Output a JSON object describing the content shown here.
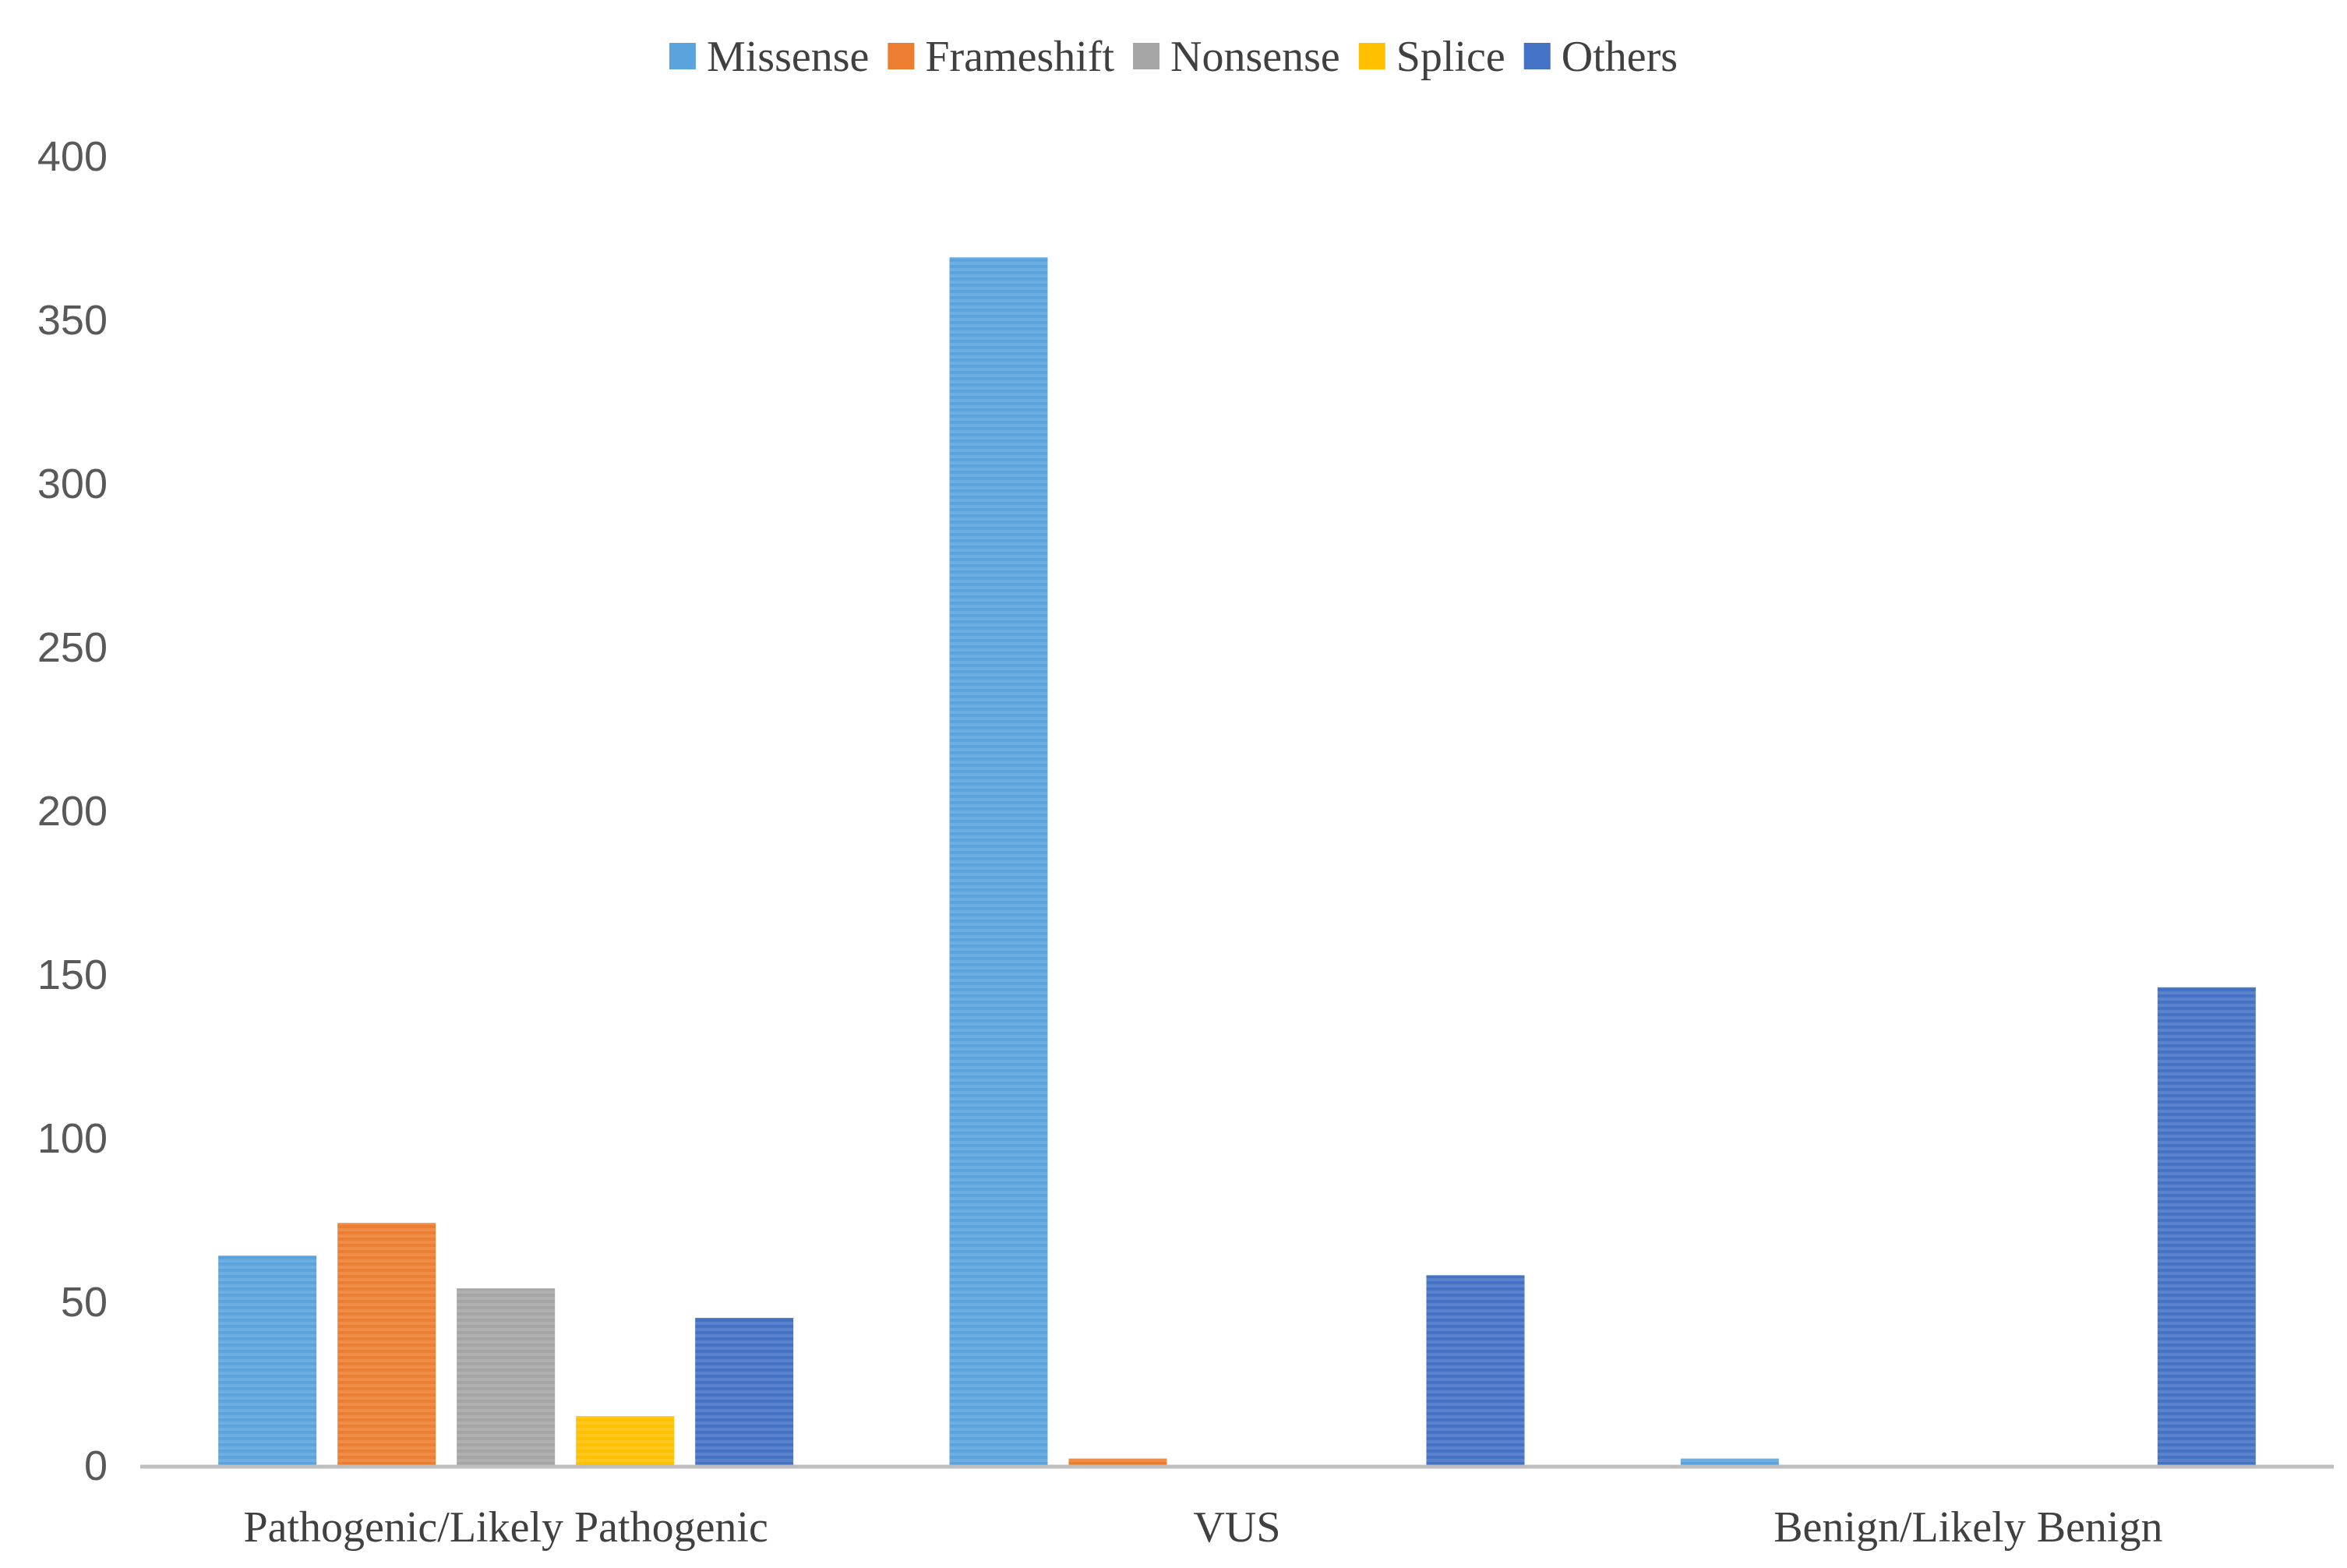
{
  "chart_data": {
    "type": "bar",
    "title": "",
    "xlabel": "",
    "ylabel": "",
    "categories": [
      "Pathogenic/Likely Pathogenic",
      "VUS",
      "Benign/Likely Benign"
    ],
    "series": [
      {
        "name": "Missense",
        "color": "#5BA3DC",
        "values": [
          64,
          369,
          2
        ]
      },
      {
        "name": "Frameshift",
        "color": "#ED7D31",
        "values": [
          74,
          2,
          0
        ]
      },
      {
        "name": "Nonsense",
        "color": "#A5A5A5",
        "values": [
          54,
          0,
          0
        ]
      },
      {
        "name": "Splice",
        "color": "#FFC000",
        "values": [
          15,
          0,
          0
        ]
      },
      {
        "name": "Others",
        "color": "#4472C4",
        "values": [
          45,
          58,
          146
        ]
      }
    ],
    "yticks": [
      0,
      50,
      100,
      150,
      200,
      250,
      300,
      350,
      400
    ],
    "ylim": [
      0,
      400
    ],
    "grid": false,
    "legend_position": "top-center",
    "axis_color": "#BFBFBF"
  }
}
